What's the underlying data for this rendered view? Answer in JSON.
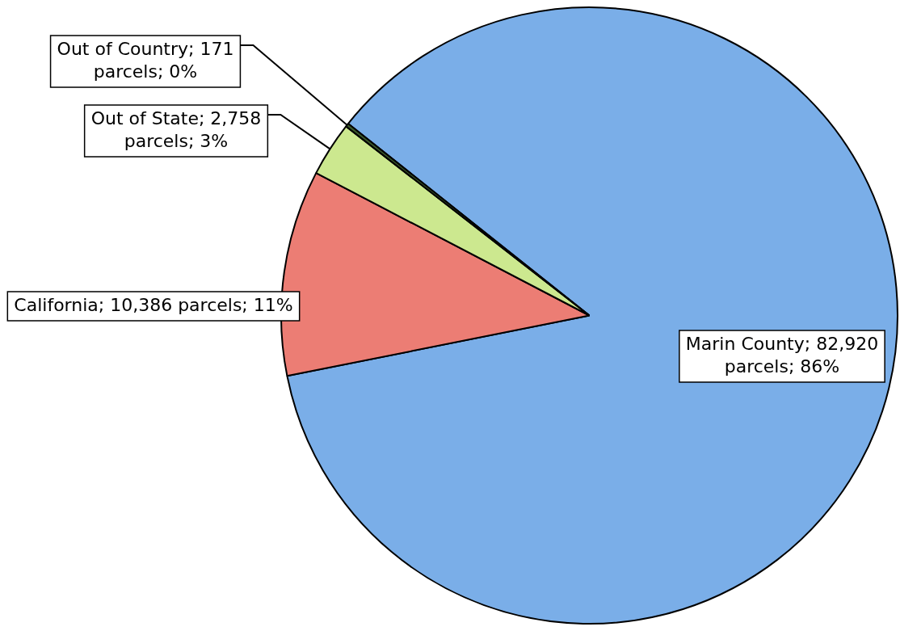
{
  "chart_data": {
    "type": "pie",
    "categories": [
      "Marin County",
      "California",
      "Out of State",
      "Out of Country"
    ],
    "values": [
      82920,
      10386,
      2758,
      171
    ],
    "colors": [
      "#7aaee8",
      "#ec7d74",
      "#cce88f",
      "#3c5a2c"
    ],
    "value_labels": [
      "82,920 parcels; 86%",
      "10,386 parcels; 11%",
      "2,758 parcels; 3%",
      "171 parcels; 0%"
    ]
  }
}
